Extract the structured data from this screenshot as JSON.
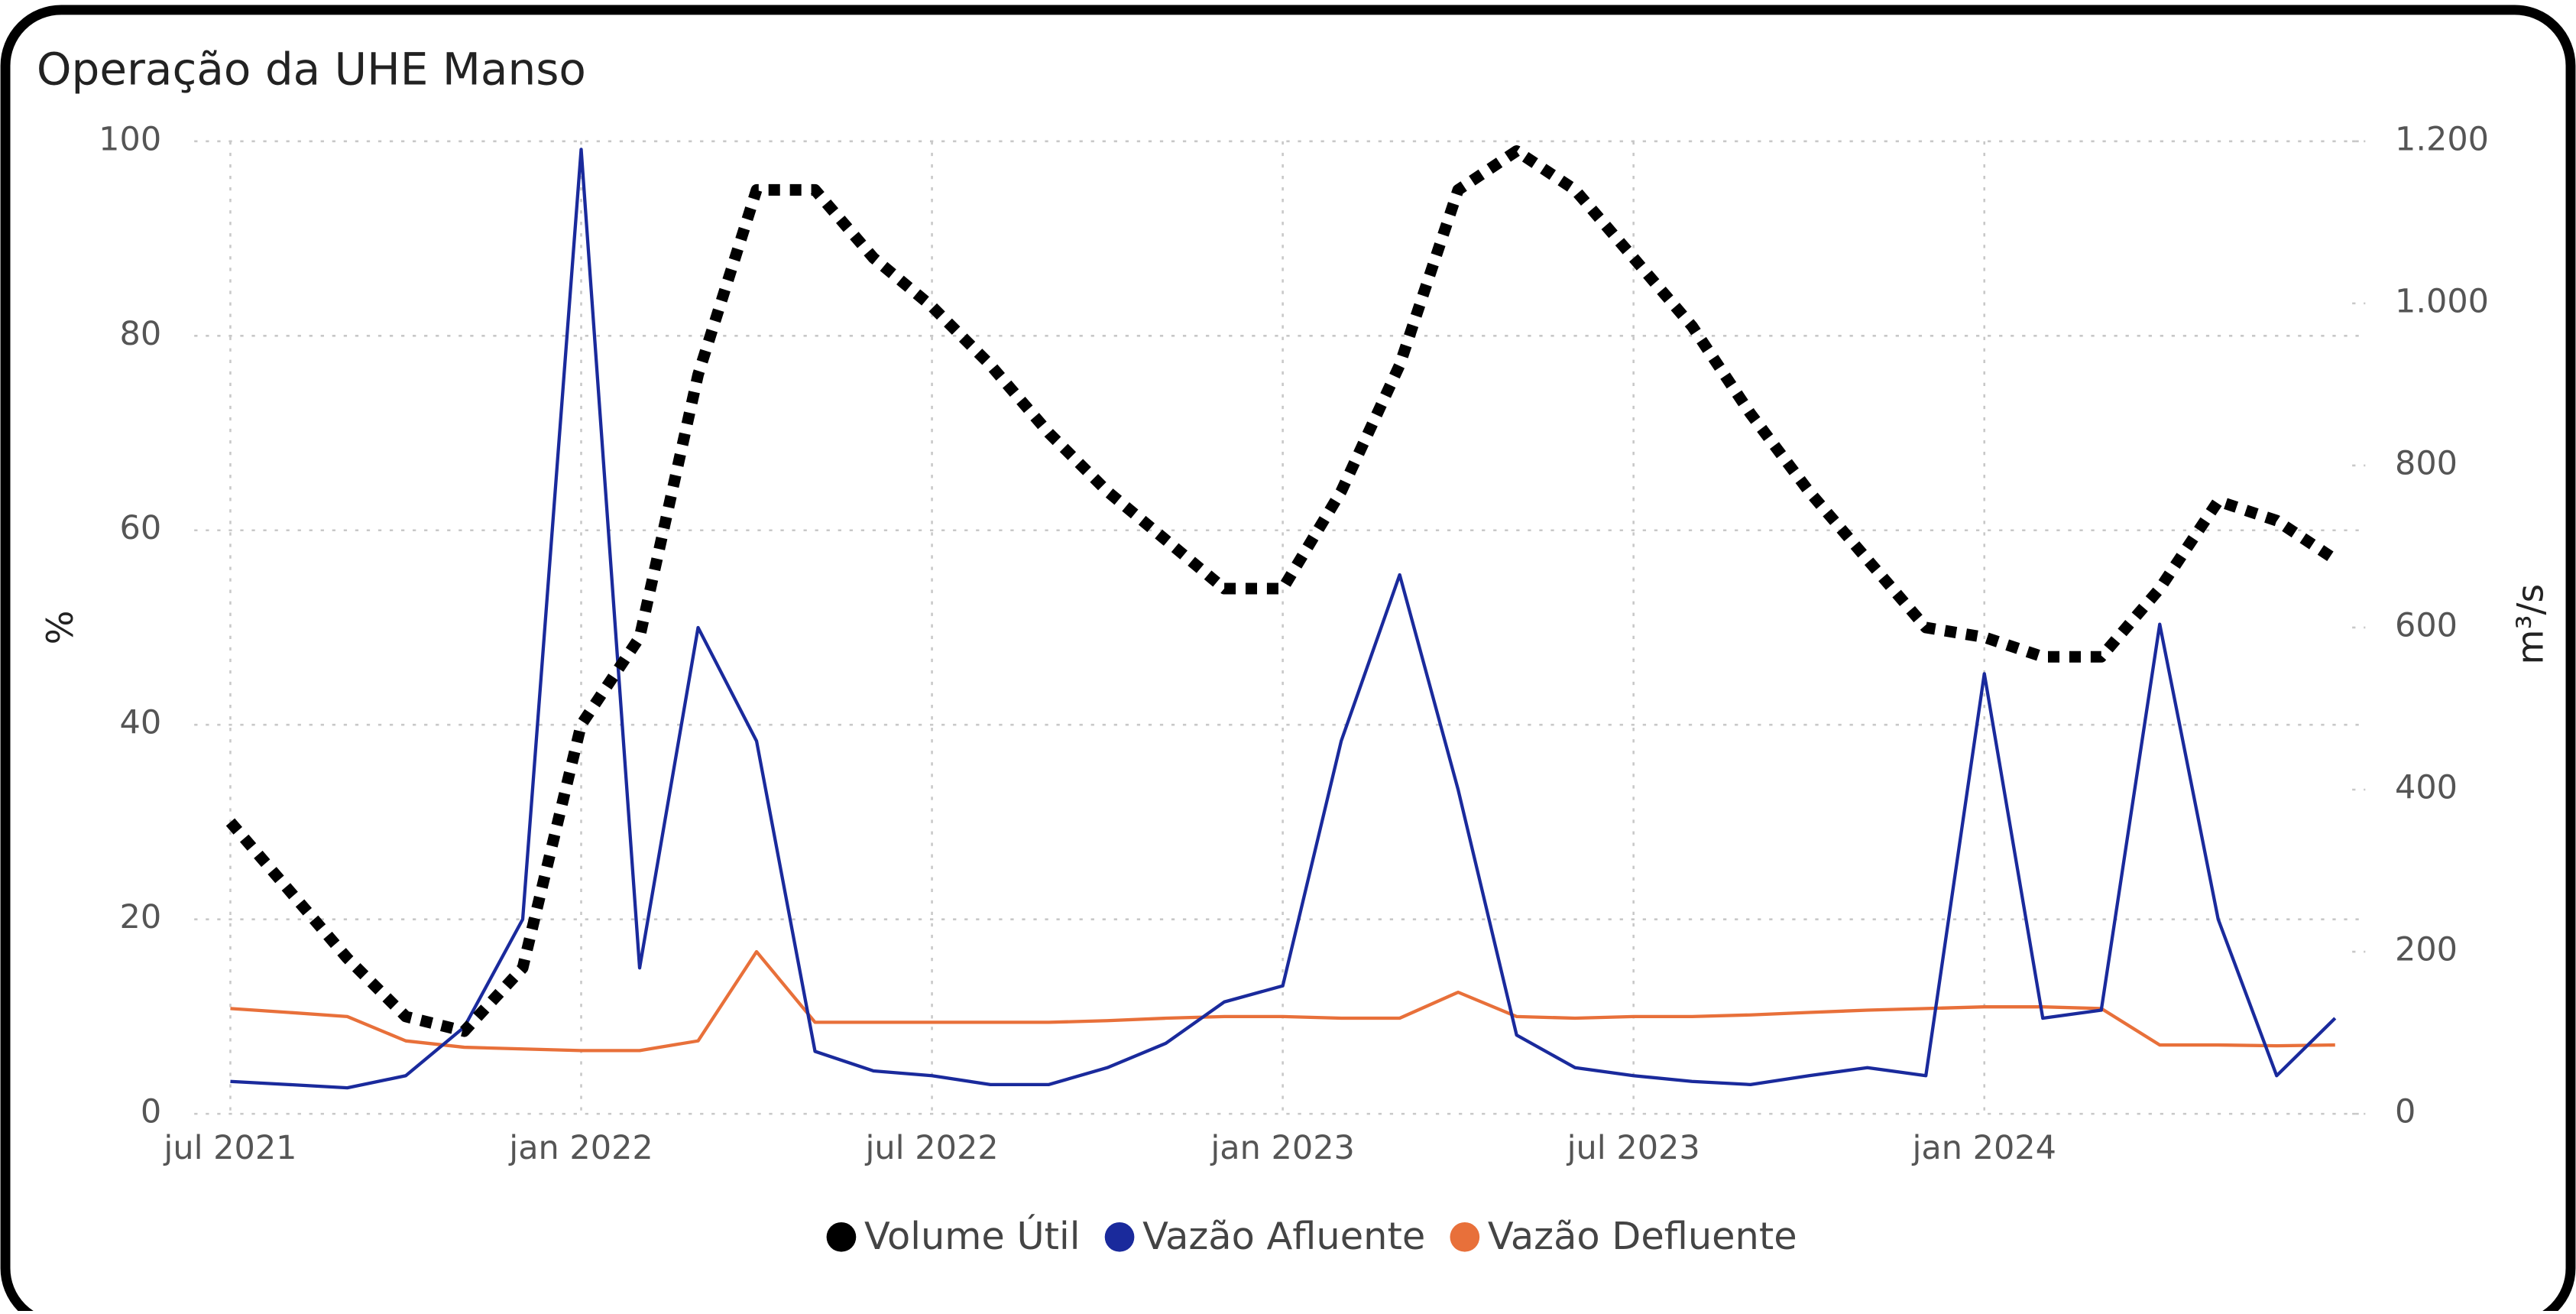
{
  "chart_data": {
    "type": "line",
    "title": "Operação da UHE Manso",
    "ylabel": "%",
    "y2label": "m³/s",
    "x": [
      "2021-07",
      "2021-08",
      "2021-09",
      "2021-10",
      "2021-11",
      "2021-12",
      "2022-01",
      "2022-02",
      "2022-03",
      "2022-04",
      "2022-05",
      "2022-06",
      "2022-07",
      "2022-08",
      "2022-09",
      "2022-10",
      "2022-11",
      "2022-12",
      "2023-01",
      "2023-02",
      "2023-03",
      "2023-04",
      "2023-05",
      "2023-06",
      "2023-07",
      "2023-08",
      "2023-09",
      "2023-10",
      "2023-11",
      "2023-12",
      "2024-01",
      "2024-02",
      "2024-03",
      "2024-04",
      "2024-05",
      "2024-06",
      "2024-07"
    ],
    "series": [
      {
        "name": "Volume Útil",
        "color": "#000000",
        "axis": "y",
        "values": [
          30,
          23,
          16,
          10,
          8.5,
          15,
          40,
          49,
          76,
          95,
          95,
          88,
          83,
          77,
          70,
          64,
          59,
          54,
          54,
          64,
          77,
          95,
          99,
          95,
          88,
          81,
          72,
          64,
          57,
          50,
          49,
          47,
          47,
          54,
          63,
          61,
          57
        ]
      },
      {
        "name": "Vazão Afluente",
        "color": "#1a2a9c",
        "axis": "y2",
        "values": [
          40,
          36,
          32,
          47,
          107,
          240,
          1190,
          180,
          600,
          460,
          77,
          53,
          47,
          36,
          36,
          57,
          87,
          138,
          158,
          460,
          665,
          400,
          97,
          57,
          47,
          40,
          36,
          47,
          57,
          47,
          543,
          118,
          128,
          604,
          240,
          47,
          118
        ]
      },
      {
        "name": "Vazão Defluente",
        "color": "#e8703a",
        "axis": "y2",
        "values": [
          130,
          125,
          120,
          90,
          82,
          80,
          78,
          78,
          90,
          200,
          113,
          113,
          113,
          113,
          113,
          115,
          118,
          120,
          120,
          118,
          118,
          150,
          120,
          118,
          120,
          120,
          122,
          125,
          128,
          130,
          132,
          132,
          130,
          85,
          85,
          84,
          85
        ]
      }
    ],
    "xticks": [
      {
        "value": "2021-07",
        "label": "jul 2021"
      },
      {
        "value": "2022-01",
        "label": "jan 2022"
      },
      {
        "value": "2022-07",
        "label": "jul 2022"
      },
      {
        "value": "2023-01",
        "label": "jan 2023"
      },
      {
        "value": "2023-07",
        "label": "jul 2023"
      },
      {
        "value": "2024-01",
        "label": "jan 2024"
      }
    ],
    "ylim": [
      0,
      100
    ],
    "yticks": [
      0,
      20,
      40,
      60,
      80,
      100
    ],
    "y2lim": [
      0,
      1200
    ],
    "y2ticks": [
      0,
      200,
      400,
      600,
      800,
      {
        "value": 1000,
        "label": "1.000"
      },
      {
        "value": 1200,
        "label": "1.200"
      }
    ],
    "grid": true
  }
}
